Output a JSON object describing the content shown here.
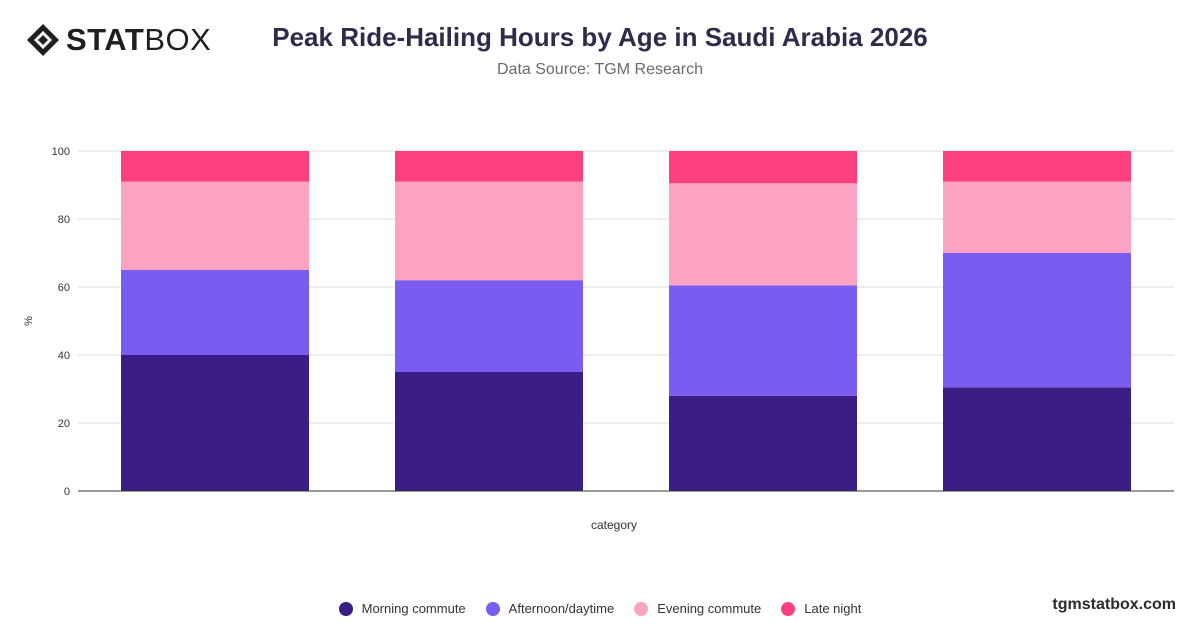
{
  "header": {
    "logo_bold": "STAT",
    "logo_light": "BOX",
    "title": "Peak Ride-Hailing Hours by Age in Saudi Arabia 2026",
    "subtitle": "Data Source: TGM Research"
  },
  "footer": {
    "site": "tgmstatbox.com"
  },
  "colors": {
    "morning": "#3a1e86",
    "afternoon": "#7b5cf0",
    "evening": "#fca3c3",
    "late": "#fc3f7e",
    "grid": "#dddddd",
    "axis": "#333333",
    "text": "#333333"
  },
  "chart_data": {
    "type": "bar",
    "stacked": true,
    "categories": [
      "",
      "",
      "",
      ""
    ],
    "xlabel": "category",
    "ylabel": "%",
    "ylim": [
      0,
      100
    ],
    "yticks": [
      0,
      20,
      40,
      60,
      80,
      100
    ],
    "grid": true,
    "legend_position": "bottom",
    "series": [
      {
        "name": "Morning commute",
        "color": "#3a1e86",
        "values": [
          40,
          35,
          28,
          30.5
        ]
      },
      {
        "name": "Afternoon/daytime",
        "color": "#7b5cf0",
        "values": [
          25,
          27,
          32.5,
          39.5
        ]
      },
      {
        "name": "Evening commute",
        "color": "#fca3c3",
        "values": [
          26,
          29,
          30,
          21
        ]
      },
      {
        "name": "Late night",
        "color": "#fc3f7e",
        "values": [
          9,
          9,
          9.5,
          9
        ]
      }
    ]
  }
}
